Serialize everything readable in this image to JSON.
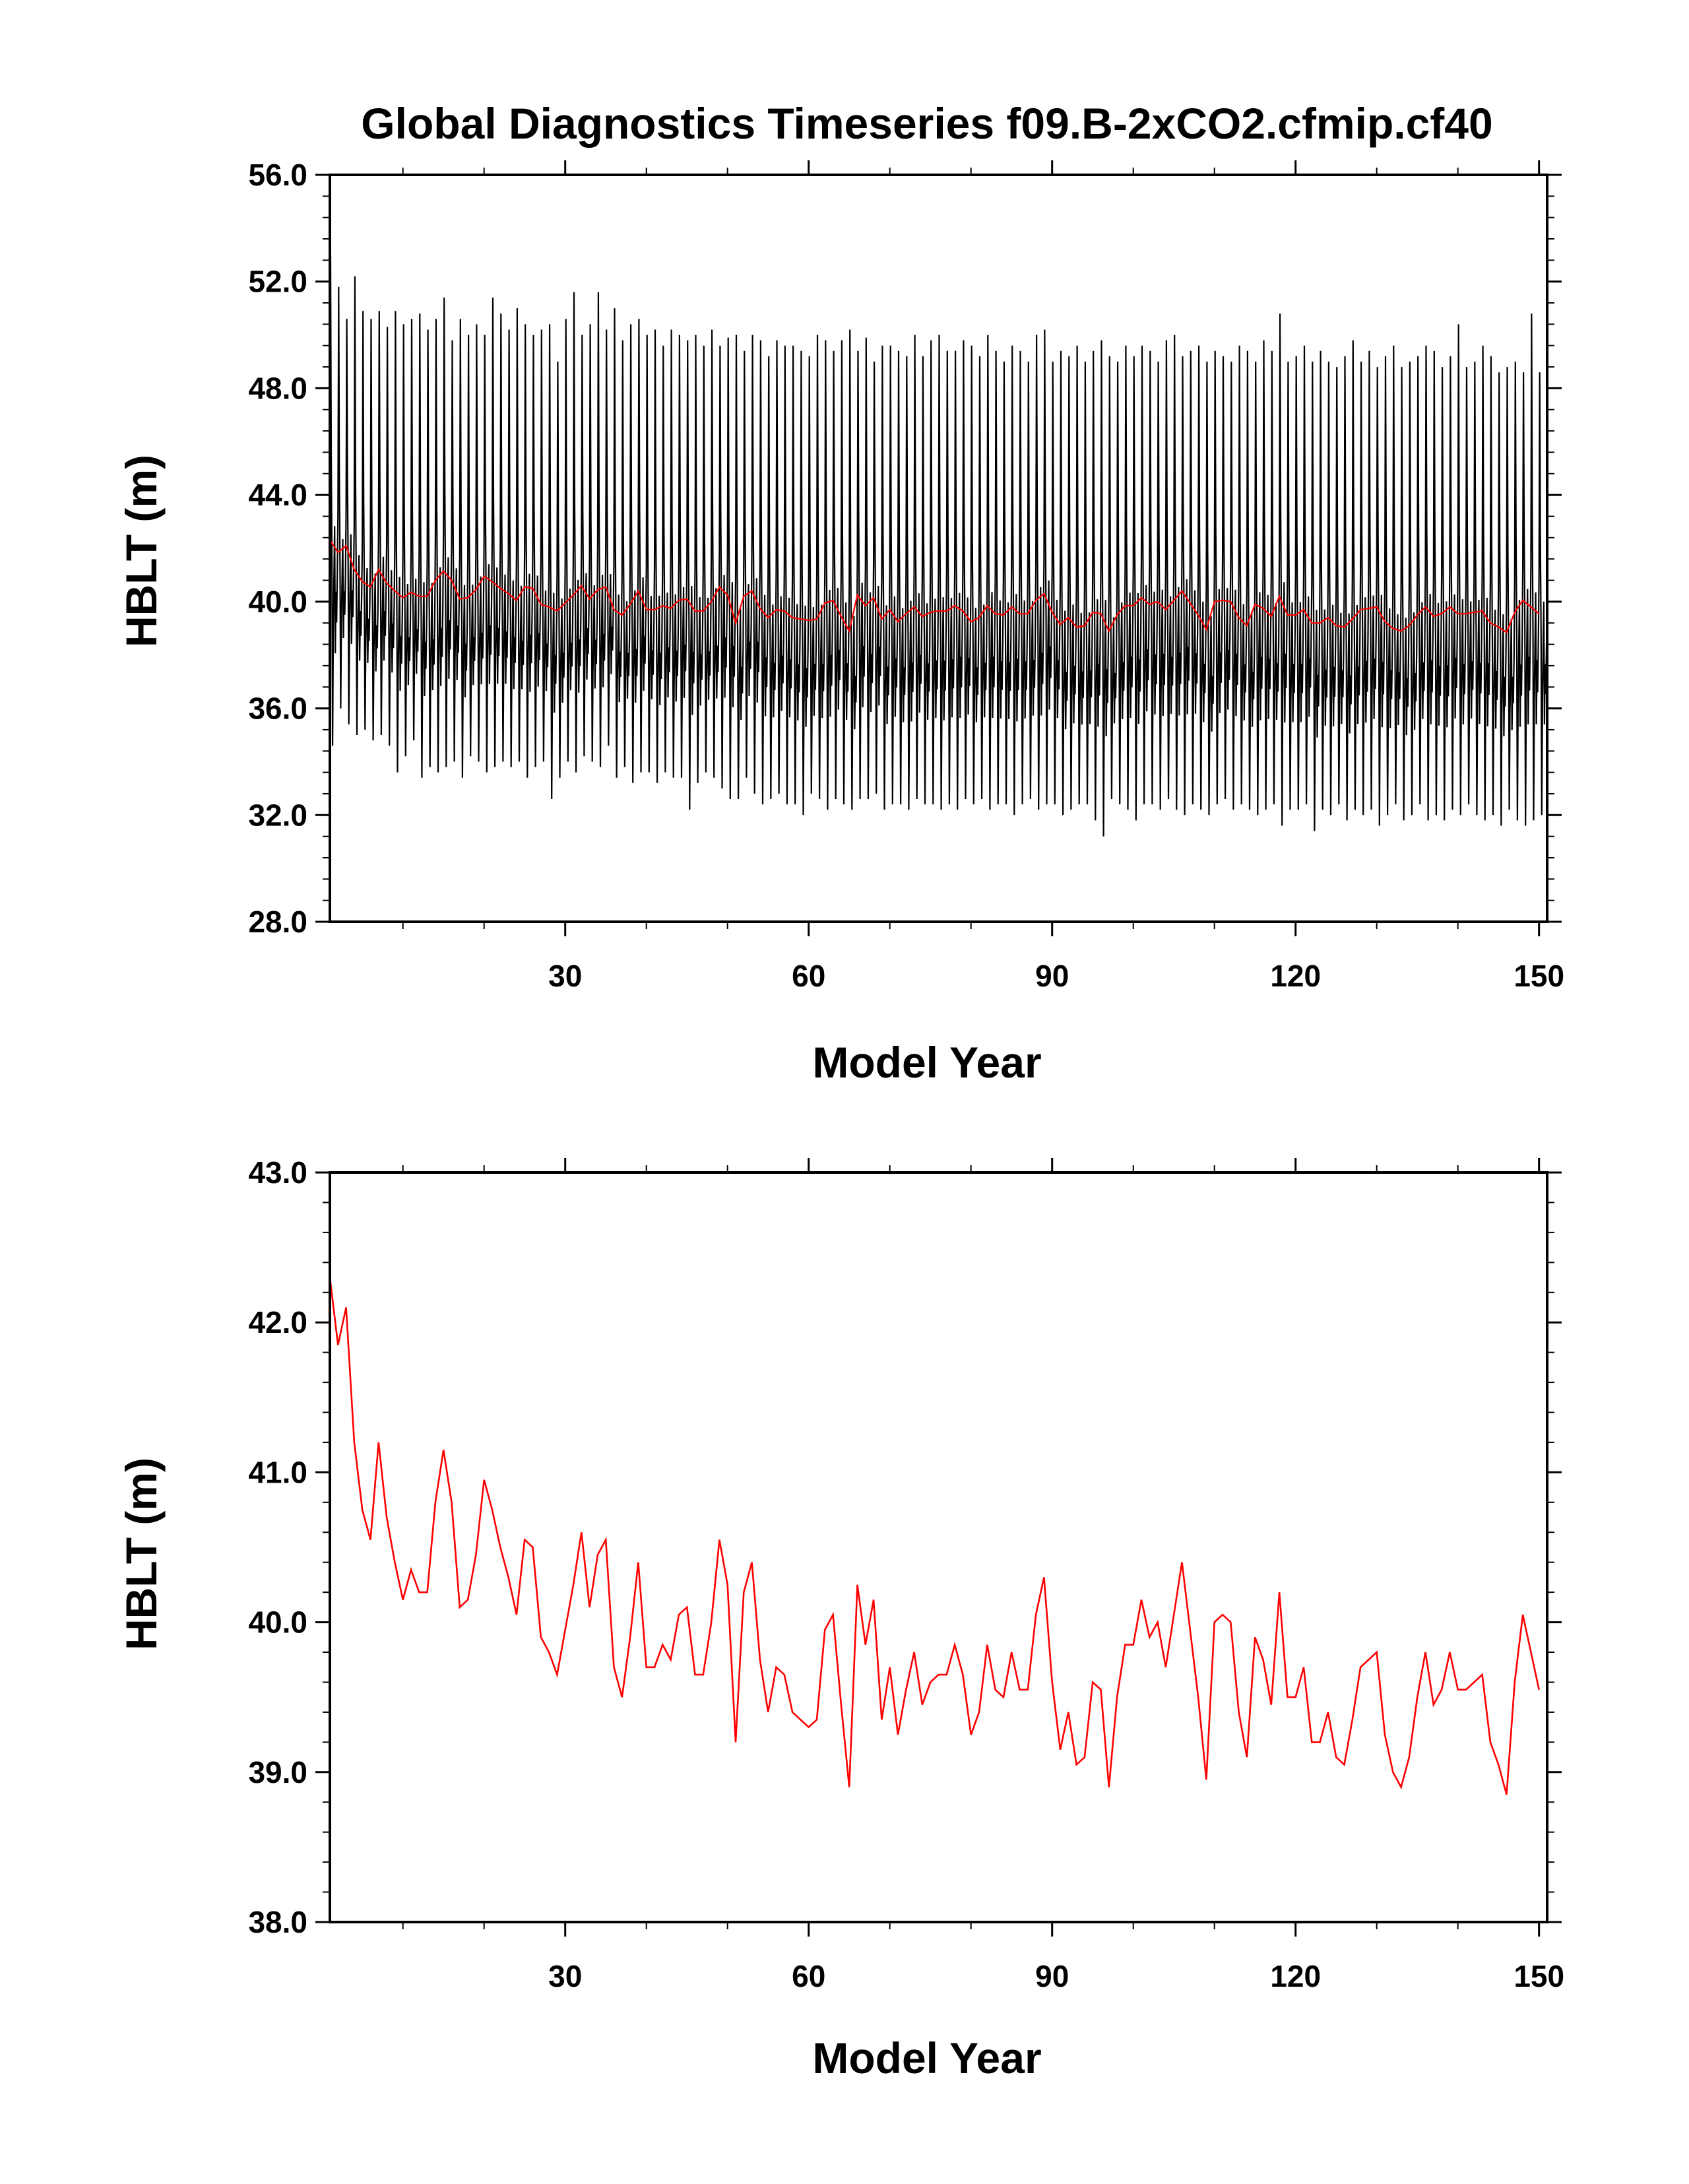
{
  "title": "Global Diagnostics Timeseries f09.B-2xCO2.cfmip.cf40",
  "colors": {
    "monthly_series": "#000000",
    "annual_series": "#ff0000",
    "axes": "#000000",
    "background": "#ffffff"
  },
  "chart_data": [
    {
      "type": "line",
      "title": "Global Diagnostics Timeseries f09.B-2xCO2.cfmip.cf40",
      "xlabel": "Model Year",
      "ylabel": "HBLT (m)",
      "xlim": [
        1,
        151
      ],
      "ylim": [
        28,
        56
      ],
      "xticks": [
        30,
        60,
        90,
        120,
        150
      ],
      "xtick_labels": [
        "30",
        "60",
        "90",
        "120",
        "150"
      ],
      "yticks": [
        28,
        32,
        36,
        40,
        44,
        48,
        52,
        56
      ],
      "ytick_labels": [
        "28.0",
        "32.0",
        "36.0",
        "40.0",
        "44.0",
        "48.0",
        "52.0",
        "56.0"
      ],
      "grid": false,
      "legend": "none",
      "series": [
        {
          "color": "#000000",
          "description_of_values": "monthly",
          "x_start": 1,
          "x_step": 0.08333,
          "annual_max": [
            53.0,
            51.8,
            50.6,
            52.2,
            50.9,
            50.6,
            50.9,
            50.3,
            50.9,
            50.4,
            50.6,
            50.8,
            50.2,
            50.6,
            51.4,
            49.8,
            50.6,
            50.0,
            50.4,
            50.0,
            51.4,
            50.8,
            50.2,
            51.0,
            50.4,
            50.0,
            50.2,
            50.4,
            49.0,
            50.6,
            51.6,
            50.0,
            50.4,
            51.6,
            50.2,
            51.0,
            49.8,
            50.4,
            50.6,
            50.0,
            50.2,
            49.6,
            50.2,
            50.0,
            49.8,
            50.0,
            49.6,
            50.2,
            49.6,
            49.9,
            50.0,
            49.4,
            50.0,
            49.8,
            49.2,
            49.8,
            49.6,
            49.6,
            49.4,
            49.2,
            50.0,
            49.8,
            49.4,
            49.8,
            50.2,
            49.4,
            49.9,
            49.0,
            49.6,
            49.6,
            49.4,
            49.2,
            50.0,
            49.2,
            49.8,
            50.0,
            49.4,
            49.4,
            49.8,
            49.6,
            49.2,
            50.0,
            49.4,
            49.0,
            49.6,
            49.4,
            49.0,
            50.0,
            50.2,
            49.0,
            49.4,
            49.2,
            49.6,
            49.0,
            49.4,
            49.8,
            49.2,
            49.0,
            49.6,
            49.2,
            49.6,
            49.4,
            49.0,
            49.8,
            50.0,
            49.2,
            49.4,
            49.6,
            49.0,
            49.4,
            49.2,
            49.0,
            49.6,
            49.4,
            49.0,
            49.8,
            49.4,
            50.8,
            49.0,
            49.2,
            49.6,
            49.0,
            49.4,
            49.0,
            48.8,
            49.2,
            49.8,
            49.0,
            49.4,
            48.8,
            49.2,
            49.6,
            48.8,
            49.0,
            49.2,
            49.6,
            49.4,
            48.8,
            49.2,
            50.4,
            48.8,
            49.0,
            49.6,
            49.2,
            48.6,
            48.8,
            49.0,
            48.6,
            50.8,
            48.6,
            48.4
          ],
          "annual_min": [
            34.6,
            36.0,
            35.4,
            35.0,
            35.2,
            34.8,
            35.0,
            34.6,
            33.6,
            34.2,
            34.8,
            33.4,
            33.8,
            33.6,
            33.8,
            34.0,
            33.4,
            34.2,
            34.0,
            33.6,
            33.8,
            34.0,
            33.8,
            34.0,
            33.4,
            33.8,
            34.0,
            32.6,
            33.4,
            34.0,
            33.6,
            34.2,
            34.0,
            33.8,
            34.6,
            33.4,
            33.8,
            33.2,
            33.6,
            33.6,
            33.2,
            33.6,
            33.4,
            33.4,
            32.2,
            33.2,
            33.6,
            33.4,
            33.0,
            32.6,
            32.6,
            33.4,
            32.8,
            32.4,
            32.6,
            32.8,
            32.4,
            32.4,
            32.0,
            32.8,
            32.6,
            32.2,
            32.6,
            32.4,
            32.2,
            32.6,
            32.6,
            32.8,
            32.2,
            32.4,
            32.4,
            32.2,
            32.6,
            32.4,
            32.4,
            32.2,
            32.4,
            32.2,
            32.6,
            32.4,
            32.6,
            32.2,
            32.4,
            32.4,
            32.0,
            32.4,
            32.6,
            32.2,
            32.4,
            32.4,
            32.0,
            32.2,
            32.4,
            32.4,
            31.8,
            31.2,
            32.6,
            32.4,
            32.2,
            31.8,
            32.4,
            32.4,
            32.2,
            32.6,
            32.2,
            32.0,
            32.4,
            32.2,
            32.0,
            32.4,
            32.6,
            32.2,
            32.4,
            32.2,
            32.0,
            32.2,
            32.4,
            31.6,
            32.2,
            32.2,
            32.4,
            31.4,
            32.2,
            32.0,
            32.4,
            31.8,
            32.2,
            32.0,
            32.2,
            31.6,
            32.0,
            32.4,
            31.8,
            32.0,
            32.4,
            31.8,
            32.0,
            31.8,
            32.2,
            32.0,
            32.4,
            32.0,
            31.8,
            32.0,
            31.6,
            32.2,
            31.8,
            31.6,
            31.8,
            32.0
          ]
        },
        {
          "color": "#ff0000",
          "description_of_values": "annual mean",
          "same_as": "chart_data[1].series[0].y"
        }
      ]
    },
    {
      "type": "line",
      "xlabel": "Model Year",
      "ylabel": "HBLT (m)",
      "xlim": [
        1,
        151
      ],
      "ylim": [
        38,
        43
      ],
      "xticks": [
        30,
        60,
        90,
        120,
        150
      ],
      "xtick_labels": [
        "30",
        "60",
        "90",
        "120",
        "150"
      ],
      "yticks": [
        38,
        39,
        40,
        41,
        42,
        43
      ],
      "ytick_labels": [
        "38.0",
        "39.0",
        "40.0",
        "41.0",
        "42.0",
        "43.0"
      ],
      "grid": false,
      "legend": "none",
      "series": [
        {
          "color": "#ff0000",
          "x_start": 1,
          "x_step": 1,
          "y": [
            42.3,
            41.85,
            42.1,
            41.2,
            40.75,
            40.55,
            41.2,
            40.7,
            40.4,
            40.15,
            40.35,
            40.2,
            40.2,
            40.8,
            41.15,
            40.8,
            40.1,
            40.15,
            40.45,
            40.95,
            40.75,
            40.5,
            40.3,
            40.05,
            40.55,
            40.5,
            39.9,
            39.8,
            39.65,
            39.95,
            40.25,
            40.6,
            40.1,
            40.45,
            40.55,
            39.7,
            39.5,
            39.9,
            40.4,
            39.7,
            39.7,
            39.85,
            39.75,
            40.05,
            40.1,
            39.65,
            39.65,
            40.0,
            40.55,
            40.25,
            39.2,
            40.2,
            40.4,
            39.75,
            39.4,
            39.7,
            39.65,
            39.4,
            39.35,
            39.3,
            39.35,
            39.95,
            40.05,
            39.45,
            38.9,
            40.25,
            39.85,
            40.15,
            39.35,
            39.7,
            39.25,
            39.55,
            39.8,
            39.45,
            39.6,
            39.65,
            39.65,
            39.85,
            39.65,
            39.25,
            39.4,
            39.85,
            39.55,
            39.5,
            39.8,
            39.55,
            39.55,
            40.05,
            40.3,
            39.6,
            39.15,
            39.4,
            39.05,
            39.1,
            39.6,
            39.55,
            38.9,
            39.5,
            39.85,
            39.85,
            40.15,
            39.9,
            40.0,
            39.7,
            40.05,
            40.4,
            39.95,
            39.5,
            38.95,
            40.0,
            40.05,
            40.0,
            39.4,
            39.1,
            39.9,
            39.75,
            39.45,
            40.2,
            39.5,
            39.5,
            39.7,
            39.2,
            39.2,
            39.4,
            39.1,
            39.05,
            39.35,
            39.7,
            39.75,
            39.8,
            39.25,
            39.0,
            38.9,
            39.1,
            39.5,
            39.8,
            39.45,
            39.55,
            39.8,
            39.55,
            39.55,
            39.6,
            39.65,
            39.2,
            39.05,
            38.85,
            39.6,
            40.05,
            39.8,
            39.55
          ]
        }
      ]
    }
  ]
}
